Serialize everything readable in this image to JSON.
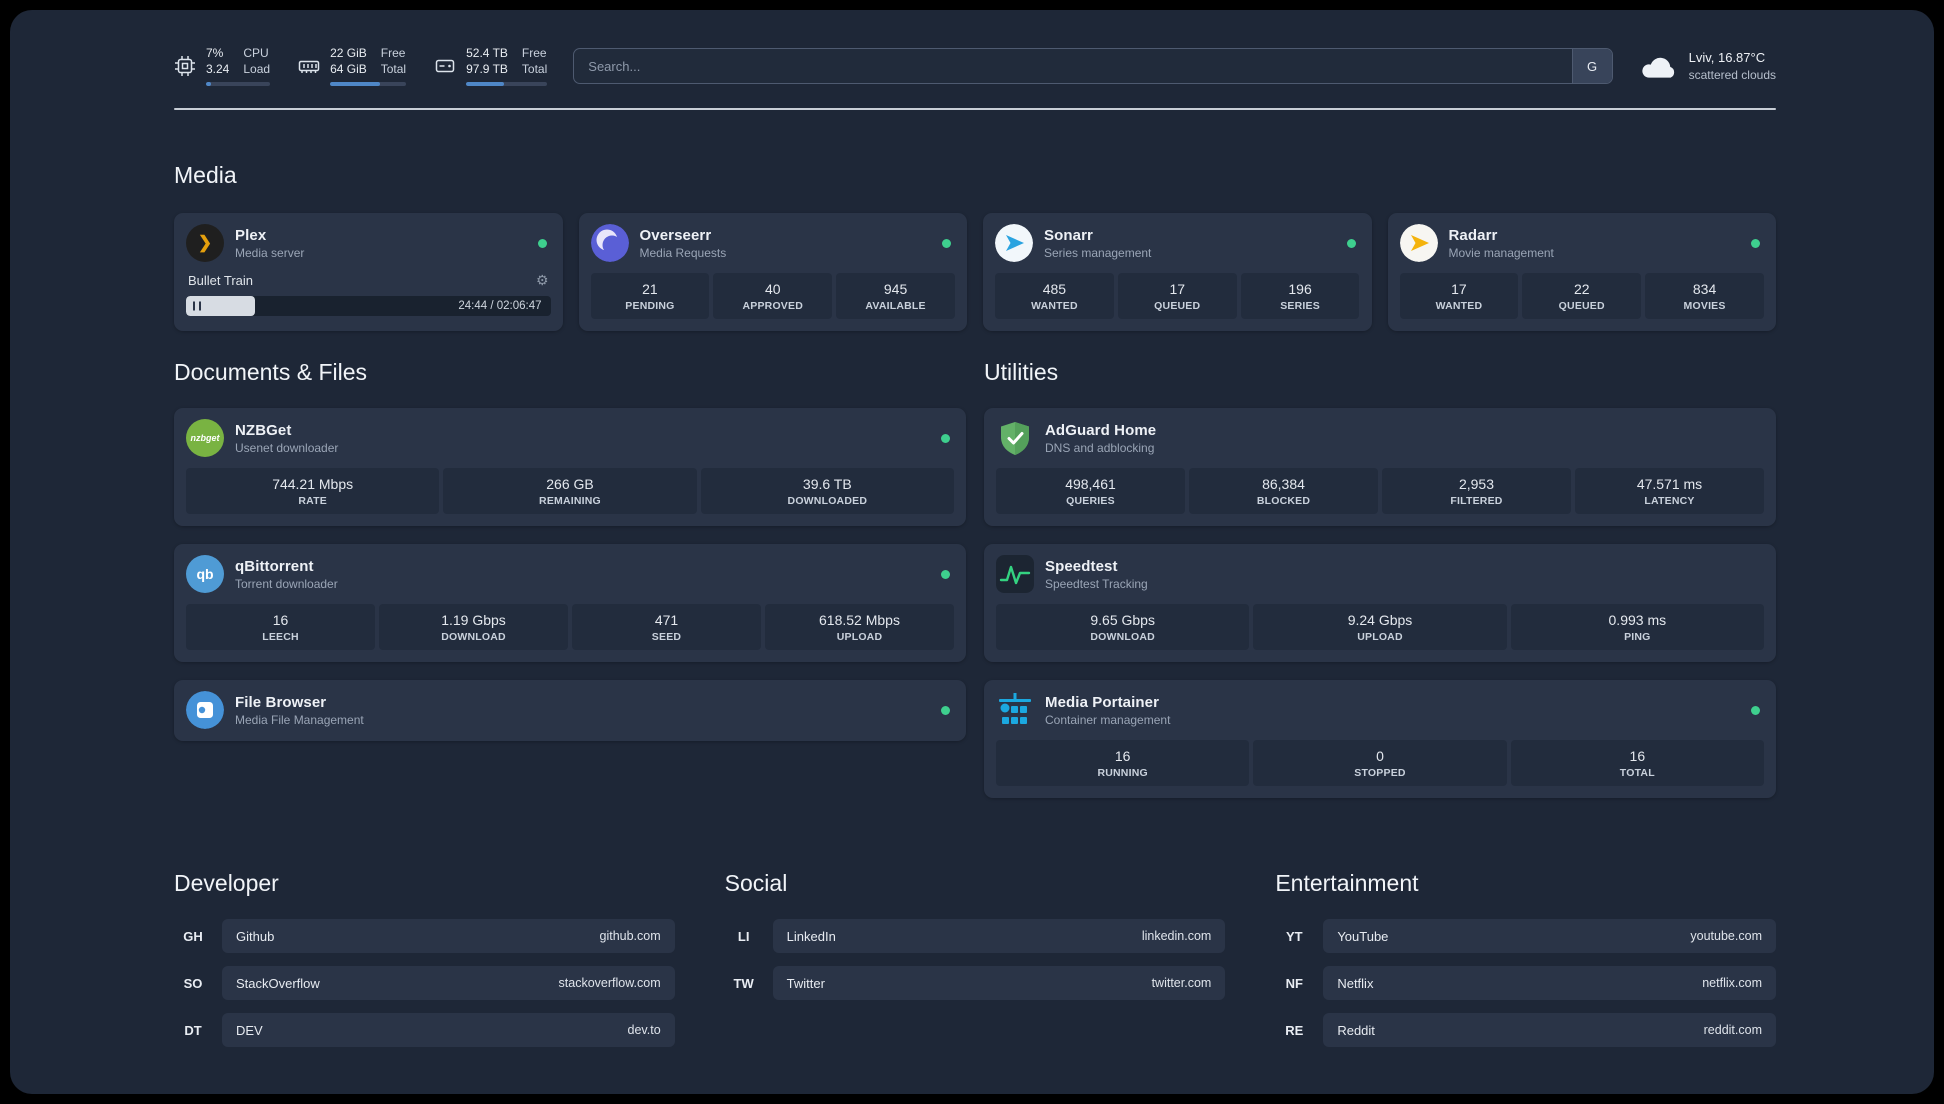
{
  "header": {
    "cpu": {
      "value_top": "7%",
      "value_bottom": "3.24",
      "label_top": "CPU",
      "label_bottom": "Load",
      "bar_percent": 8
    },
    "ram": {
      "value_top": "22 GiB",
      "value_bottom": "64 GiB",
      "label_top": "Free",
      "label_bottom": "Total",
      "bar_percent": 66
    },
    "disk": {
      "value_top": "52.4 TB",
      "value_bottom": "97.9 TB",
      "label_top": "Free",
      "label_bottom": "Total",
      "bar_percent": 47
    },
    "search": {
      "placeholder": "Search...",
      "engine_button": "G"
    },
    "weather": {
      "location": "Lviv, 16.87°C",
      "condition": "scattered clouds"
    }
  },
  "sections": {
    "media": {
      "title": "Media",
      "cards": [
        {
          "name": "Plex",
          "subtitle": "Media server",
          "online": true,
          "player": {
            "track": "Bullet Train",
            "time": "24:44 / 02:06:47",
            "progress_percent": 19
          }
        },
        {
          "name": "Overseerr",
          "subtitle": "Media Requests",
          "online": true,
          "stats": [
            {
              "value": "21",
              "label": "PENDING"
            },
            {
              "value": "40",
              "label": "APPROVED"
            },
            {
              "value": "945",
              "label": "AVAILABLE"
            }
          ]
        },
        {
          "name": "Sonarr",
          "subtitle": "Series management",
          "online": true,
          "stats": [
            {
              "value": "485",
              "label": "WANTED"
            },
            {
              "value": "17",
              "label": "QUEUED"
            },
            {
              "value": "196",
              "label": "SERIES"
            }
          ]
        },
        {
          "name": "Radarr",
          "subtitle": "Movie management",
          "online": true,
          "stats": [
            {
              "value": "17",
              "label": "WANTED"
            },
            {
              "value": "22",
              "label": "QUEUED"
            },
            {
              "value": "834",
              "label": "MOVIES"
            }
          ]
        }
      ]
    },
    "documents": {
      "title": "Documents & Files",
      "cards": [
        {
          "name": "NZBGet",
          "subtitle": "Usenet downloader",
          "online": true,
          "icon_text": "nzbget",
          "stats": [
            {
              "value": "744.21 Mbps",
              "label": "RATE"
            },
            {
              "value": "266 GB",
              "label": "REMAINING"
            },
            {
              "value": "39.6 TB",
              "label": "DOWNLOADED"
            }
          ]
        },
        {
          "name": "qBittorrent",
          "subtitle": "Torrent downloader",
          "online": true,
          "icon_text": "qb",
          "stats": [
            {
              "value": "16",
              "label": "LEECH"
            },
            {
              "value": "1.19 Gbps",
              "label": "DOWNLOAD"
            },
            {
              "value": "471",
              "label": "SEED"
            },
            {
              "value": "618.52 Mbps",
              "label": "UPLOAD"
            }
          ]
        },
        {
          "name": "File Browser",
          "subtitle": "Media File Management",
          "online": true,
          "stats": []
        }
      ]
    },
    "utilities": {
      "title": "Utilities",
      "cards": [
        {
          "name": "AdGuard Home",
          "subtitle": "DNS and adblocking",
          "online": false,
          "stats": [
            {
              "value": "498,461",
              "label": "QUERIES"
            },
            {
              "value": "86,384",
              "label": "BLOCKED"
            },
            {
              "value": "2,953",
              "label": "FILTERED"
            },
            {
              "value": "47.571 ms",
              "label": "LATENCY"
            }
          ]
        },
        {
          "name": "Speedtest",
          "subtitle": "Speedtest Tracking",
          "online": false,
          "stats": [
            {
              "value": "9.65 Gbps",
              "label": "DOWNLOAD"
            },
            {
              "value": "9.24 Gbps",
              "label": "UPLOAD"
            },
            {
              "value": "0.993 ms",
              "label": "PING"
            }
          ]
        },
        {
          "name": "Media Portainer",
          "subtitle": "Container management",
          "online": true,
          "stats": [
            {
              "value": "16",
              "label": "RUNNING"
            },
            {
              "value": "0",
              "label": "STOPPED"
            },
            {
              "value": "16",
              "label": "TOTAL"
            }
          ]
        }
      ]
    },
    "bookmarks": [
      {
        "title": "Developer",
        "items": [
          {
            "abbr": "GH",
            "name": "Github",
            "url": "github.com"
          },
          {
            "abbr": "SO",
            "name": "StackOverflow",
            "url": "stackoverflow.com"
          },
          {
            "abbr": "DT",
            "name": "DEV",
            "url": "dev.to"
          }
        ]
      },
      {
        "title": "Social",
        "items": [
          {
            "abbr": "LI",
            "name": "LinkedIn",
            "url": "linkedin.com"
          },
          {
            "abbr": "TW",
            "name": "Twitter",
            "url": "twitter.com"
          }
        ]
      },
      {
        "title": "Entertainment",
        "items": [
          {
            "abbr": "YT",
            "name": "YouTube",
            "url": "youtube.com"
          },
          {
            "abbr": "NF",
            "name": "Netflix",
            "url": "netflix.com"
          },
          {
            "abbr": "RE",
            "name": "Reddit",
            "url": "reddit.com"
          }
        ]
      }
    ]
  },
  "colors": {
    "status_online": "#3ecf8e",
    "accent_blue": "#4f87c7",
    "background": "#1e2737",
    "card": "#2a3447",
    "tile": "#222c3d"
  }
}
